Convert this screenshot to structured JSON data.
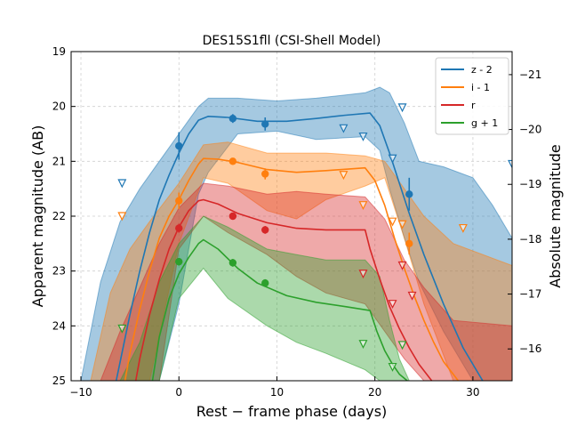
{
  "chart_data": {
    "type": "line",
    "title": "DES15S1fll (CSI-Shell Model)",
    "xlabel": "Rest − frame phase (days)",
    "ylabel": "Apparent magnitude (AB)",
    "y2label": "Absolute magnitude",
    "xlim": [
      -11,
      34
    ],
    "ylim": [
      25,
      19
    ],
    "y2lim": [
      -15.42,
      -21.42
    ],
    "xticks": [
      -10,
      0,
      10,
      20,
      30
    ],
    "yticks": [
      19,
      20,
      21,
      22,
      23,
      24,
      25
    ],
    "y2ticks": [
      -16,
      -17,
      -18,
      -19,
      -20,
      -21
    ],
    "grid": true,
    "legend_position": "top-right",
    "series": [
      {
        "name": "z - 2",
        "color": "#1f77b4",
        "model_x": [
          -6.4,
          -5,
          -4,
          -3,
          -2,
          -1,
          0,
          1,
          2,
          3,
          5,
          8,
          11,
          14,
          17,
          19.5,
          20.5,
          21.5,
          22.5,
          23.5,
          25,
          27,
          29,
          31
        ],
        "model_y": [
          25,
          23.8,
          23.0,
          22.3,
          21.7,
          21.25,
          20.85,
          20.5,
          20.25,
          20.18,
          20.2,
          20.27,
          20.27,
          20.22,
          20.16,
          20.12,
          20.35,
          20.85,
          21.4,
          21.95,
          22.7,
          23.6,
          24.4,
          25
        ],
        "band_x": [
          -10,
          -8,
          -6,
          -4,
          -2,
          0,
          2,
          3,
          6,
          10,
          14,
          19,
          20.5,
          21.5,
          23,
          24.5,
          27,
          30,
          32,
          34
        ],
        "band_lo": [
          25,
          23.2,
          22.1,
          21.5,
          21.0,
          20.5,
          20.0,
          19.85,
          19.85,
          19.9,
          19.85,
          19.75,
          19.65,
          19.75,
          20.3,
          21.0,
          21.1,
          21.3,
          21.8,
          22.4
        ],
        "band_hi": [
          25,
          25,
          25,
          25,
          25,
          23.6,
          21.6,
          21.2,
          20.5,
          20.45,
          20.6,
          20.55,
          20.8,
          21.5,
          22.4,
          23.2,
          24.1,
          25,
          25,
          25
        ],
        "detections": [
          {
            "x": 0,
            "y": 20.72,
            "err": 0.25
          },
          {
            "x": 5.5,
            "y": 20.22,
            "err": 0.08
          },
          {
            "x": 8.8,
            "y": 20.32,
            "err": 0.12
          },
          {
            "x": 23.5,
            "y": 21.6,
            "err": 0.3
          }
        ],
        "upper_limits": [
          {
            "x": -5.8,
            "y": 21.4
          },
          {
            "x": 16.8,
            "y": 20.4
          },
          {
            "x": 18.8,
            "y": 20.55
          },
          {
            "x": 21.8,
            "y": 20.95
          },
          {
            "x": 22.8,
            "y": 20.02
          },
          {
            "x": 34,
            "y": 21.05
          }
        ]
      },
      {
        "name": "i - 1",
        "color": "#ff7f0e",
        "model_x": [
          -5.5,
          -5,
          -4,
          -3,
          -2,
          -1,
          0,
          1,
          2,
          2.5,
          4,
          6,
          9,
          12,
          15,
          19,
          20,
          21,
          22,
          23,
          24,
          25,
          26,
          27,
          28.5
        ],
        "model_y": [
          25,
          24.5,
          23.7,
          23.0,
          22.4,
          22.0,
          21.7,
          21.35,
          21.05,
          20.95,
          20.96,
          21.02,
          21.15,
          21.2,
          21.17,
          21.12,
          21.35,
          21.8,
          22.4,
          22.95,
          23.45,
          23.9,
          24.3,
          24.65,
          25
        ],
        "band_lo": [
          25,
          23.4,
          22.6,
          22.1,
          21.4,
          20.7,
          20.65,
          20.85,
          20.85,
          20.85,
          20.9,
          21.0,
          21.5,
          22.0,
          22.5,
          22.9
        ],
        "band_hi": [
          25,
          25,
          25,
          25,
          22.5,
          21.3,
          21.4,
          21.9,
          22.05,
          21.7,
          21.45,
          21.3,
          22.4,
          23.6,
          25,
          25
        ],
        "band_x": [
          -9,
          -7,
          -5,
          -3,
          0,
          2.5,
          5,
          9,
          12,
          15,
          19,
          21,
          23,
          25,
          28,
          34
        ],
        "detections": [
          {
            "x": 0,
            "y": 21.72,
            "err": 0.15
          },
          {
            "x": 5.5,
            "y": 21.0,
            "err": 0.06
          },
          {
            "x": 8.8,
            "y": 21.23,
            "err": 0.1
          },
          {
            "x": 23.5,
            "y": 22.5,
            "err": 0.2
          }
        ],
        "upper_limits": [
          {
            "x": -5.8,
            "y": 22.0
          },
          {
            "x": 16.8,
            "y": 21.25
          },
          {
            "x": 18.8,
            "y": 21.8
          },
          {
            "x": 21.8,
            "y": 22.1
          },
          {
            "x": 22.8,
            "y": 22.15
          },
          {
            "x": 29,
            "y": 22.22
          }
        ]
      },
      {
        "name": "r",
        "color": "#d62728",
        "model_x": [
          -4.4,
          -4,
          -3,
          -2,
          -1,
          0,
          1,
          2,
          2.5,
          4,
          6,
          9,
          12,
          15,
          19,
          19.5,
          20.5,
          21.5,
          22.5,
          23.5,
          24.5,
          25.8
        ],
        "model_y": [
          25,
          24.6,
          23.8,
          23.15,
          22.6,
          22.2,
          21.9,
          21.72,
          21.7,
          21.78,
          21.95,
          22.12,
          22.22,
          22.25,
          22.25,
          22.6,
          23.15,
          23.65,
          24.05,
          24.4,
          24.7,
          25
        ],
        "band_x": [
          -8,
          -6,
          -4,
          -2,
          0,
          2.5,
          5,
          9,
          12,
          15,
          19,
          21,
          23,
          25,
          28,
          34
        ],
        "band_lo": [
          25,
          24.1,
          23.3,
          22.5,
          21.85,
          21.4,
          21.45,
          21.6,
          21.55,
          21.6,
          21.65,
          22.05,
          22.8,
          23.3,
          23.9,
          24.0
        ],
        "band_hi": [
          25,
          25,
          25,
          25,
          22.6,
          22.0,
          22.3,
          22.7,
          23.1,
          23.4,
          23.6,
          24.1,
          24.6,
          25,
          25,
          25
        ],
        "detections": [
          {
            "x": 0,
            "y": 22.22,
            "err": 0.08
          },
          {
            "x": 5.5,
            "y": 22.0,
            "err": 0.05
          },
          {
            "x": 8.8,
            "y": 22.25,
            "err": 0.07
          }
        ],
        "upper_limits": [
          {
            "x": 18.8,
            "y": 23.05
          },
          {
            "x": 21.8,
            "y": 23.6
          },
          {
            "x": 22.8,
            "y": 22.9
          },
          {
            "x": 23.8,
            "y": 23.45
          }
        ]
      },
      {
        "name": "g + 1",
        "color": "#2ca02c",
        "model_x": [
          -2.7,
          -2,
          -1,
          0,
          1,
          2,
          2.5,
          4,
          6,
          8,
          11,
          14,
          17,
          19.5,
          20.2,
          21,
          21.8,
          22.5,
          23.3
        ],
        "model_y": [
          25,
          24.2,
          23.5,
          23.05,
          22.75,
          22.5,
          22.43,
          22.6,
          22.95,
          23.22,
          23.45,
          23.57,
          23.65,
          23.72,
          24.1,
          24.45,
          24.7,
          24.88,
          25
        ],
        "band_x": [
          -6,
          -4,
          -2,
          0,
          2.5,
          5,
          9,
          12,
          15,
          19,
          20.5,
          21.5,
          22.5,
          23.5
        ],
        "band_lo": [
          25,
          24.3,
          23.2,
          22.5,
          22.0,
          22.2,
          22.6,
          22.7,
          22.8,
          22.8,
          23.1,
          23.9,
          24.6,
          25
        ],
        "band_hi": [
          25,
          25,
          25,
          23.5,
          22.95,
          23.5,
          24.0,
          24.3,
          24.5,
          24.8,
          25,
          25,
          25,
          25
        ],
        "detections": [
          {
            "x": 0,
            "y": 22.83,
            "err": 0.07
          },
          {
            "x": 5.5,
            "y": 22.85,
            "err": 0.07
          },
          {
            "x": 8.8,
            "y": 23.22,
            "err": 0.07
          }
        ],
        "upper_limits": [
          {
            "x": -5.8,
            "y": 24.05
          },
          {
            "x": 18.8,
            "y": 24.33
          },
          {
            "x": 21.8,
            "y": 24.75
          },
          {
            "x": 22.8,
            "y": 24.35
          }
        ]
      }
    ]
  }
}
